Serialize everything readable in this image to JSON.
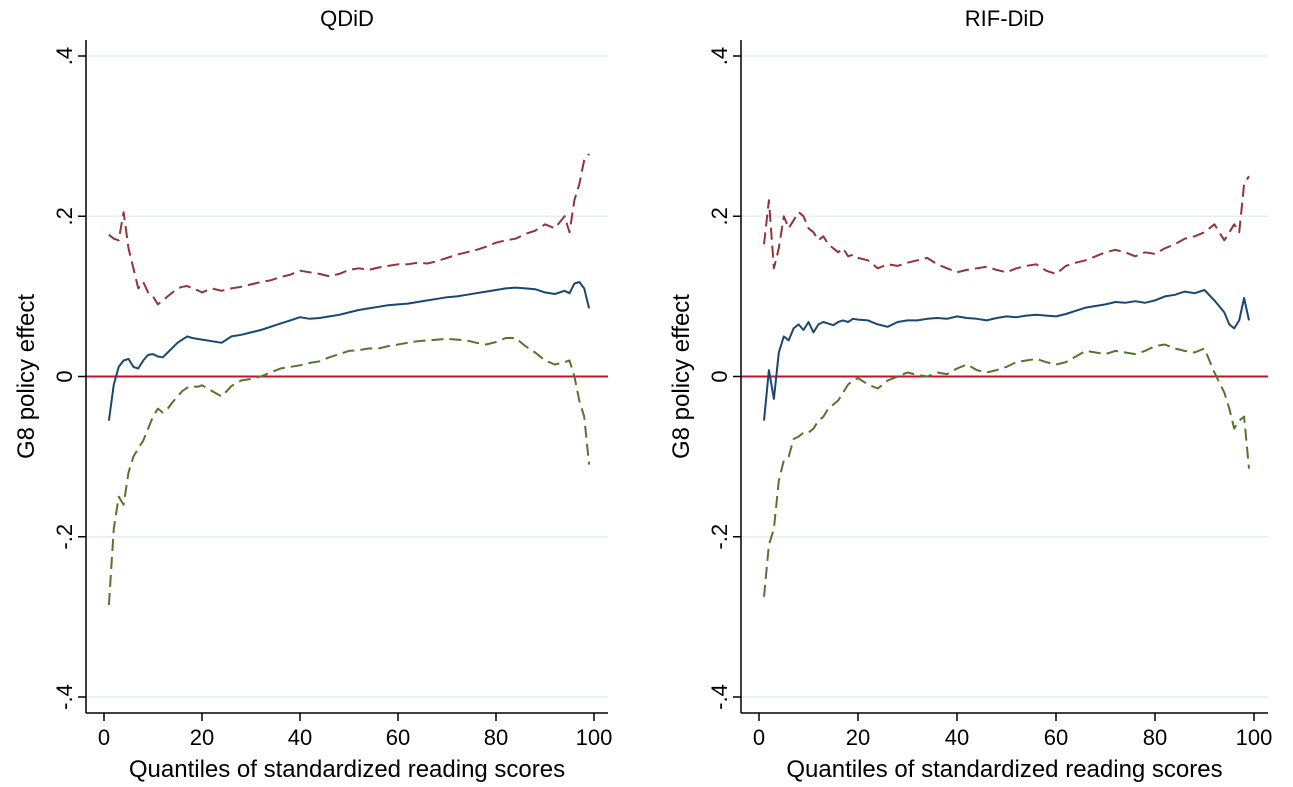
{
  "chart_data": [
    {
      "type": "line",
      "title": "QDiD",
      "xlabel": "Quantiles of standardized reading scores",
      "ylabel": "G8 policy effect",
      "xlim": [
        0,
        100
      ],
      "ylim": [
        -0.4,
        0.4
      ],
      "xticks": [
        0,
        20,
        40,
        60,
        80,
        100
      ],
      "xtick_labels": [
        "0",
        "20",
        "40",
        "60",
        "80",
        "100"
      ],
      "yticks": [
        -0.4,
        -0.2,
        0,
        0.2,
        0.4
      ],
      "ytick_labels": [
        "-.4",
        "-.2",
        "0",
        ".2",
        ".4"
      ],
      "grid": true,
      "reference_line": {
        "y": 0,
        "color": "#c8102e"
      },
      "series": [
        {
          "role": "upper_ci",
          "style": "dashed",
          "color": "#90353b",
          "x": [
            1,
            2,
            3,
            4,
            5,
            6,
            7,
            8,
            9,
            10,
            11,
            12,
            13,
            14,
            15,
            16,
            17,
            18,
            19,
            20,
            22,
            24,
            26,
            28,
            30,
            32,
            34,
            36,
            38,
            40,
            42,
            44,
            46,
            48,
            50,
            52,
            54,
            56,
            58,
            60,
            62,
            64,
            66,
            68,
            70,
            72,
            74,
            76,
            78,
            80,
            82,
            84,
            86,
            88,
            90,
            92,
            94,
            95,
            96,
            97,
            98,
            99
          ],
          "y": [
            0.177,
            0.172,
            0.17,
            0.205,
            0.16,
            0.135,
            0.11,
            0.118,
            0.105,
            0.1,
            0.09,
            0.095,
            0.1,
            0.105,
            0.11,
            0.112,
            0.113,
            0.11,
            0.108,
            0.105,
            0.11,
            0.107,
            0.11,
            0.112,
            0.115,
            0.118,
            0.12,
            0.124,
            0.127,
            0.132,
            0.13,
            0.128,
            0.125,
            0.128,
            0.133,
            0.135,
            0.133,
            0.136,
            0.138,
            0.14,
            0.14,
            0.142,
            0.141,
            0.144,
            0.148,
            0.152,
            0.155,
            0.158,
            0.162,
            0.167,
            0.17,
            0.172,
            0.178,
            0.182,
            0.19,
            0.185,
            0.2,
            0.18,
            0.22,
            0.24,
            0.27,
            0.278
          ]
        },
        {
          "role": "estimate",
          "style": "solid",
          "color": "#1a476f",
          "x": [
            1,
            2,
            3,
            4,
            5,
            6,
            7,
            8,
            9,
            10,
            11,
            12,
            13,
            14,
            15,
            16,
            17,
            18,
            19,
            20,
            22,
            24,
            26,
            28,
            30,
            32,
            34,
            36,
            38,
            40,
            42,
            44,
            46,
            48,
            50,
            52,
            54,
            56,
            58,
            60,
            62,
            64,
            66,
            68,
            70,
            72,
            74,
            76,
            78,
            80,
            82,
            84,
            86,
            88,
            90,
            92,
            94,
            95,
            96,
            97,
            98,
            99
          ],
          "y": [
            -0.055,
            -0.01,
            0.012,
            0.02,
            0.022,
            0.012,
            0.01,
            0.02,
            0.027,
            0.028,
            0.025,
            0.024,
            0.03,
            0.036,
            0.042,
            0.046,
            0.05,
            0.048,
            0.047,
            0.046,
            0.044,
            0.042,
            0.05,
            0.052,
            0.055,
            0.058,
            0.062,
            0.066,
            0.07,
            0.074,
            0.072,
            0.073,
            0.075,
            0.077,
            0.08,
            0.083,
            0.085,
            0.087,
            0.089,
            0.09,
            0.091,
            0.093,
            0.095,
            0.097,
            0.099,
            0.1,
            0.102,
            0.104,
            0.106,
            0.108,
            0.11,
            0.111,
            0.11,
            0.109,
            0.105,
            0.103,
            0.107,
            0.104,
            0.116,
            0.118,
            0.11,
            0.085
          ]
        },
        {
          "role": "lower_ci",
          "style": "dashed",
          "color": "#55752f",
          "x": [
            1,
            2,
            3,
            4,
            5,
            6,
            7,
            8,
            9,
            10,
            11,
            12,
            13,
            14,
            15,
            16,
            17,
            18,
            19,
            20,
            22,
            24,
            26,
            28,
            30,
            32,
            34,
            36,
            38,
            40,
            42,
            44,
            46,
            48,
            50,
            52,
            54,
            56,
            58,
            60,
            62,
            64,
            66,
            68,
            70,
            72,
            74,
            76,
            78,
            80,
            82,
            84,
            86,
            88,
            90,
            92,
            94,
            95,
            96,
            97,
            98,
            99
          ],
          "y": [
            -0.285,
            -0.19,
            -0.15,
            -0.16,
            -0.12,
            -0.1,
            -0.09,
            -0.08,
            -0.065,
            -0.05,
            -0.04,
            -0.045,
            -0.04,
            -0.032,
            -0.025,
            -0.018,
            -0.014,
            -0.012,
            -0.013,
            -0.011,
            -0.018,
            -0.025,
            -0.012,
            -0.005,
            -0.003,
            0.0,
            0.005,
            0.01,
            0.012,
            0.014,
            0.017,
            0.019,
            0.024,
            0.028,
            0.032,
            0.033,
            0.035,
            0.035,
            0.038,
            0.04,
            0.042,
            0.044,
            0.045,
            0.046,
            0.047,
            0.046,
            0.045,
            0.042,
            0.04,
            0.043,
            0.048,
            0.048,
            0.038,
            0.03,
            0.02,
            0.015,
            0.018,
            0.02,
            0.0,
            -0.03,
            -0.05,
            -0.11
          ]
        }
      ]
    },
    {
      "type": "line",
      "title": "RIF-DiD",
      "xlabel": "Quantiles of standardized reading scores",
      "ylabel": "G8 policy effect",
      "xlim": [
        0,
        100
      ],
      "ylim": [
        -0.4,
        0.4
      ],
      "xticks": [
        0,
        20,
        40,
        60,
        80,
        100
      ],
      "xtick_labels": [
        "0",
        "20",
        "40",
        "60",
        "80",
        "100"
      ],
      "yticks": [
        -0.4,
        -0.2,
        0,
        0.2,
        0.4
      ],
      "ytick_labels": [
        "-.4",
        "-.2",
        "0",
        ".2",
        ".4"
      ],
      "grid": true,
      "reference_line": {
        "y": 0,
        "color": "#c8102e"
      },
      "series": [
        {
          "role": "upper_ci",
          "style": "dashed",
          "color": "#90353b",
          "x": [
            1,
            2,
            3,
            4,
            5,
            6,
            7,
            8,
            9,
            10,
            11,
            12,
            13,
            14,
            15,
            16,
            17,
            18,
            19,
            20,
            22,
            24,
            26,
            28,
            30,
            32,
            34,
            36,
            38,
            40,
            42,
            44,
            46,
            48,
            50,
            52,
            54,
            56,
            58,
            60,
            62,
            64,
            66,
            68,
            70,
            72,
            74,
            76,
            78,
            80,
            82,
            84,
            86,
            88,
            90,
            92,
            94,
            95,
            96,
            97,
            98,
            99
          ],
          "y": [
            0.165,
            0.22,
            0.135,
            0.16,
            0.2,
            0.185,
            0.195,
            0.205,
            0.2,
            0.185,
            0.18,
            0.17,
            0.175,
            0.165,
            0.16,
            0.155,
            0.16,
            0.15,
            0.152,
            0.148,
            0.145,
            0.135,
            0.14,
            0.138,
            0.142,
            0.145,
            0.148,
            0.14,
            0.135,
            0.13,
            0.133,
            0.135,
            0.137,
            0.133,
            0.13,
            0.135,
            0.138,
            0.14,
            0.132,
            0.128,
            0.138,
            0.142,
            0.145,
            0.15,
            0.155,
            0.158,
            0.155,
            0.15,
            0.155,
            0.153,
            0.16,
            0.165,
            0.172,
            0.175,
            0.18,
            0.19,
            0.17,
            0.18,
            0.19,
            0.18,
            0.24,
            0.25
          ]
        },
        {
          "role": "estimate",
          "style": "solid",
          "color": "#1a476f",
          "x": [
            1,
            2,
            3,
            4,
            5,
            6,
            7,
            8,
            9,
            10,
            11,
            12,
            13,
            14,
            15,
            16,
            17,
            18,
            19,
            20,
            22,
            24,
            26,
            28,
            30,
            32,
            34,
            36,
            38,
            40,
            42,
            44,
            46,
            48,
            50,
            52,
            54,
            56,
            58,
            60,
            62,
            64,
            66,
            68,
            70,
            72,
            74,
            76,
            78,
            80,
            82,
            84,
            86,
            88,
            90,
            92,
            94,
            95,
            96,
            97,
            98,
            99
          ],
          "y": [
            -0.055,
            0.008,
            -0.028,
            0.03,
            0.05,
            0.045,
            0.06,
            0.065,
            0.058,
            0.068,
            0.055,
            0.065,
            0.068,
            0.066,
            0.064,
            0.068,
            0.07,
            0.068,
            0.072,
            0.071,
            0.07,
            0.065,
            0.062,
            0.068,
            0.07,
            0.07,
            0.072,
            0.073,
            0.072,
            0.075,
            0.073,
            0.072,
            0.07,
            0.073,
            0.075,
            0.074,
            0.076,
            0.077,
            0.076,
            0.075,
            0.078,
            0.082,
            0.086,
            0.088,
            0.09,
            0.093,
            0.092,
            0.094,
            0.092,
            0.095,
            0.1,
            0.102,
            0.106,
            0.104,
            0.108,
            0.095,
            0.08,
            0.065,
            0.06,
            0.07,
            0.098,
            0.07
          ]
        },
        {
          "role": "lower_ci",
          "style": "dashed",
          "color": "#55752f",
          "x": [
            1,
            2,
            3,
            4,
            5,
            6,
            7,
            8,
            9,
            10,
            11,
            12,
            13,
            14,
            15,
            16,
            17,
            18,
            19,
            20,
            22,
            24,
            26,
            28,
            30,
            32,
            34,
            36,
            38,
            40,
            42,
            44,
            46,
            48,
            50,
            52,
            54,
            56,
            58,
            60,
            62,
            64,
            66,
            68,
            70,
            72,
            74,
            76,
            78,
            80,
            82,
            84,
            86,
            88,
            90,
            92,
            94,
            95,
            96,
            97,
            98,
            99
          ],
          "y": [
            -0.275,
            -0.21,
            -0.19,
            -0.13,
            -0.105,
            -0.1,
            -0.078,
            -0.075,
            -0.07,
            -0.07,
            -0.065,
            -0.055,
            -0.05,
            -0.04,
            -0.035,
            -0.03,
            -0.02,
            -0.01,
            -0.005,
            -0.002,
            -0.01,
            -0.015,
            -0.005,
            0.0,
            0.005,
            0.002,
            0.0,
            0.005,
            0.003,
            0.01,
            0.015,
            0.008,
            0.005,
            0.008,
            0.012,
            0.018,
            0.02,
            0.022,
            0.018,
            0.015,
            0.018,
            0.025,
            0.032,
            0.03,
            0.028,
            0.032,
            0.03,
            0.028,
            0.032,
            0.038,
            0.04,
            0.035,
            0.032,
            0.03,
            0.035,
            0.005,
            -0.02,
            -0.04,
            -0.065,
            -0.055,
            -0.05,
            -0.115
          ]
        }
      ]
    }
  ]
}
